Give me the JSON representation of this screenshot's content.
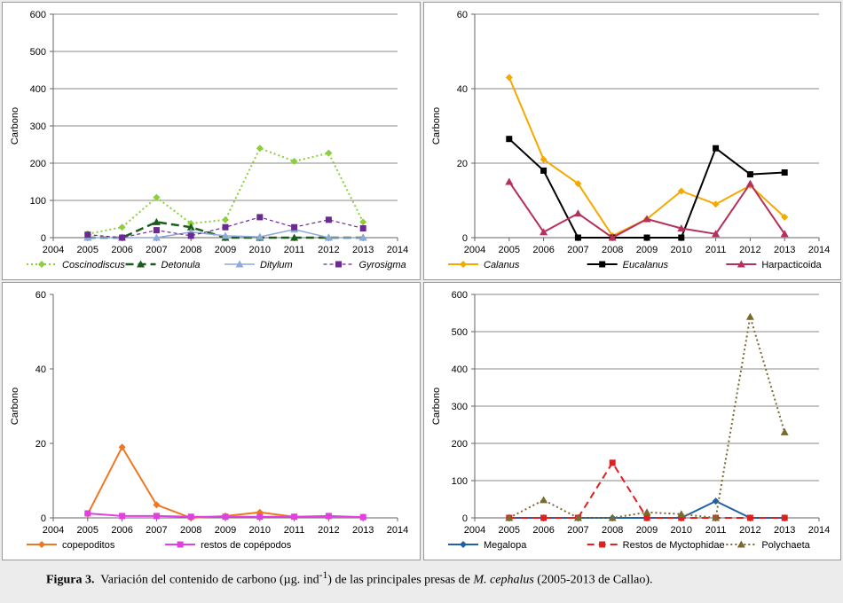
{
  "caption": {
    "label": "Figura 3.",
    "text_a": "Variación del contenido de carbono (µg. ind",
    "superscript": "-1",
    "text_b": ") de las principales presas de ",
    "species": "M. cephalus",
    "text_c": " (2005-2013 de Callao)."
  },
  "chart_data": [
    {
      "type": "line",
      "ylabel": "Carbono",
      "xlim": [
        2004,
        2014
      ],
      "ylim": [
        0,
        600
      ],
      "yticks": [
        0,
        100,
        200,
        300,
        400,
        500,
        600
      ],
      "xticks": [
        2004,
        2005,
        2006,
        2007,
        2008,
        2009,
        2010,
        2011,
        2012,
        2013,
        2014
      ],
      "grid": true,
      "legend": "bottom",
      "series": [
        {
          "name": "Coscinodiscus",
          "italic": true,
          "color": "#8bcf3a",
          "dash": "2,3",
          "width": 2,
          "marker": "diamond",
          "x": [
            2005,
            2006,
            2007,
            2008,
            2009,
            2010,
            2011,
            2012,
            2013
          ],
          "values": [
            10,
            28,
            108,
            38,
            48,
            240,
            205,
            227,
            42
          ]
        },
        {
          "name": "Detonula",
          "italic": true,
          "color": "#1a5c1a",
          "dash": "9,5",
          "width": 2.5,
          "marker": "triangle",
          "x": [
            2005,
            2006,
            2007,
            2008,
            2009,
            2010,
            2011,
            2012,
            2013
          ],
          "values": [
            0,
            0,
            42,
            28,
            0,
            0,
            0,
            0,
            0
          ]
        },
        {
          "name": "Ditylum",
          "italic": true,
          "color": "#8eaad8",
          "dash": "",
          "width": 1.5,
          "marker": "triangle",
          "x": [
            2005,
            2006,
            2007,
            2008,
            2009,
            2010,
            2011,
            2012,
            2013
          ],
          "values": [
            0,
            0,
            0,
            15,
            5,
            2,
            22,
            0,
            0
          ]
        },
        {
          "name": "Gyrosigma",
          "italic": true,
          "color": "#6a2a92",
          "dash": "4,3",
          "width": 1.2,
          "marker": "square",
          "x": [
            2005,
            2006,
            2007,
            2008,
            2009,
            2010,
            2011,
            2012,
            2013
          ],
          "values": [
            8,
            0,
            20,
            5,
            28,
            55,
            28,
            48,
            25
          ]
        }
      ]
    },
    {
      "type": "line",
      "ylabel": "Carbono",
      "xlim": [
        2004,
        2014
      ],
      "ylim": [
        0,
        60
      ],
      "yticks": [
        0,
        20,
        40,
        60
      ],
      "xticks": [
        2004,
        2005,
        2006,
        2007,
        2008,
        2009,
        2010,
        2011,
        2012,
        2013,
        2014
      ],
      "grid": true,
      "legend": "bottom",
      "series": [
        {
          "name": "Calanus",
          "italic": true,
          "color": "#f5a800",
          "dash": "",
          "width": 2,
          "marker": "diamond",
          "x": [
            2005,
            2006,
            2007,
            2008,
            2009,
            2010,
            2011,
            2012,
            2013
          ],
          "values": [
            43,
            21,
            14.5,
            0.5,
            5,
            12.5,
            9,
            14,
            5.5
          ]
        },
        {
          "name": "Eucalanus",
          "italic": true,
          "color": "#000000",
          "dash": "",
          "width": 2,
          "marker": "square",
          "x": [
            2005,
            2006,
            2007,
            2008,
            2009,
            2010,
            2011,
            2012,
            2013
          ],
          "values": [
            26.5,
            18,
            0,
            0,
            0,
            0,
            24,
            17,
            17.5
          ]
        },
        {
          "name": "Harpacticoida",
          "italic": false,
          "color": "#b5305a",
          "dash": "",
          "width": 2,
          "marker": "triangle",
          "x": [
            2005,
            2006,
            2007,
            2008,
            2009,
            2010,
            2011,
            2012,
            2013
          ],
          "values": [
            15,
            1.5,
            6.5,
            0,
            5,
            2.5,
            1,
            14.5,
            1
          ]
        }
      ]
    },
    {
      "type": "line",
      "ylabel": "Carbono",
      "xlim": [
        2004,
        2014
      ],
      "ylim": [
        0,
        60
      ],
      "yticks": [
        0,
        20,
        40,
        60
      ],
      "xticks": [
        2004,
        2005,
        2006,
        2007,
        2008,
        2009,
        2010,
        2011,
        2012,
        2013,
        2014
      ],
      "grid": false,
      "legend": "bottom",
      "series": [
        {
          "name": "copepoditos",
          "italic": false,
          "color": "#ee7722",
          "dash": "",
          "width": 2,
          "marker": "diamond",
          "x": [
            2005,
            2006,
            2007,
            2008,
            2009,
            2010,
            2011,
            2012,
            2013
          ],
          "values": [
            1,
            19,
            3.5,
            0,
            0.5,
            1.5,
            0.3,
            0.3,
            0.2
          ]
        },
        {
          "name": "restos de copépodos",
          "italic": false,
          "color": "#e040e0",
          "dash": "",
          "width": 2,
          "marker": "square",
          "x": [
            2005,
            2006,
            2007,
            2008,
            2009,
            2010,
            2011,
            2012,
            2013
          ],
          "values": [
            1.2,
            0.5,
            0.5,
            0.3,
            0.3,
            0.3,
            0.3,
            0.5,
            0.2
          ]
        }
      ]
    },
    {
      "type": "line",
      "ylabel": "Carbono",
      "xlim": [
        2004,
        2014
      ],
      "ylim": [
        0,
        600
      ],
      "yticks": [
        0,
        100,
        200,
        300,
        400,
        500,
        600
      ],
      "xticks": [
        2004,
        2005,
        2006,
        2007,
        2008,
        2009,
        2010,
        2011,
        2012,
        2013,
        2014
      ],
      "grid": true,
      "legend": "bottom",
      "series": [
        {
          "name": "Megalopa",
          "italic": false,
          "color": "#2060a8",
          "dash": "",
          "width": 2,
          "marker": "diamond",
          "x": [
            2005,
            2006,
            2007,
            2008,
            2009,
            2010,
            2011,
            2012,
            2013
          ],
          "values": [
            0,
            0,
            0,
            0,
            0,
            0,
            45,
            0,
            0
          ]
        },
        {
          "name": "Restos de Myctophidae",
          "italic": false,
          "color": "#e02020",
          "dash": "8,5",
          "width": 2,
          "marker": "square",
          "x": [
            2005,
            2006,
            2007,
            2008,
            2009,
            2010,
            2011,
            2012,
            2013
          ],
          "values": [
            0,
            0,
            0,
            148,
            0,
            0,
            0,
            0,
            0
          ]
        },
        {
          "name": "Polychaeta",
          "italic": false,
          "color": "#7a6a30",
          "dash": "2,3",
          "width": 2,
          "marker": "triangle",
          "x": [
            2005,
            2006,
            2007,
            2008,
            2009,
            2010,
            2011,
            2012,
            2013
          ],
          "values": [
            0,
            48,
            0,
            0,
            15,
            10,
            0,
            540,
            230
          ]
        }
      ]
    }
  ]
}
